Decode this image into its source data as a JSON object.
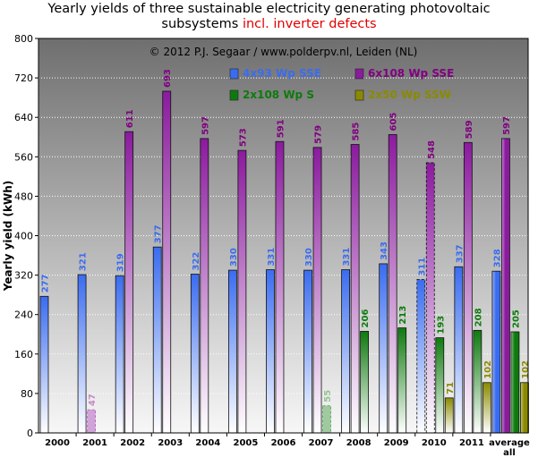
{
  "title_line1": "Yearly yields of three sustainable electricity generating photovoltaic",
  "title_line2_main": "subsystems",
  "title_line2_red": "incl. inverter defects",
  "copyright": "© 2012 P.J. Segaar / www.polderpv.nl, Leiden (NL)",
  "colors": {
    "blue": "#3a6cf0",
    "purple": "#8b1a9e",
    "green": "#0e7a0e",
    "olive": "#8a8a00",
    "plot_bg_top": "#6f6f6f",
    "plot_bg_bottom": "#f7f7f7"
  },
  "chart_data": {
    "type": "bar",
    "ylabel": "Yearly yield (kWh)",
    "ylim": [
      0,
      800
    ],
    "yticks": [
      0,
      80,
      160,
      240,
      320,
      400,
      480,
      560,
      640,
      720,
      800
    ],
    "grid": true,
    "legend_placement": "top",
    "categories": [
      "2000",
      "2001",
      "2002",
      "2003",
      "2004",
      "2005",
      "2006",
      "2007",
      "2008",
      "2009",
      "2010",
      "2011",
      "average all"
    ],
    "category_lines": [
      [
        "2000"
      ],
      [
        "2001"
      ],
      [
        "2002"
      ],
      [
        "2003"
      ],
      [
        "2004"
      ],
      [
        "2005"
      ],
      [
        "2006"
      ],
      [
        "2007"
      ],
      [
        "2008"
      ],
      [
        "2009"
      ],
      [
        "2010"
      ],
      [
        "2011"
      ],
      [
        "average",
        "all"
      ]
    ],
    "series": [
      {
        "name": "4x93 Wp SSE",
        "color": "#3a6cf0",
        "label_color": "#3a6cf0",
        "values": [
          277,
          321,
          319,
          377,
          322,
          330,
          331,
          330,
          331,
          343,
          311,
          337,
          328
        ]
      },
      {
        "name": "6x108 Wp SSE",
        "color": "#8b1a9e",
        "label_color": "#800080",
        "values": [
          null,
          47,
          611,
          693,
          597,
          573,
          591,
          579,
          585,
          605,
          548,
          589,
          597
        ]
      },
      {
        "name": "2x108 Wp S",
        "color": "#0e7a0e",
        "label_color": "#0e7a0e",
        "values": [
          null,
          null,
          null,
          null,
          null,
          null,
          null,
          55,
          206,
          213,
          193,
          208,
          205
        ]
      },
      {
        "name": "2x50 Wp SSW",
        "color": "#8a8a00",
        "label_color": "#8a8a00",
        "values": [
          null,
          null,
          null,
          null,
          null,
          null,
          null,
          null,
          null,
          null,
          71,
          102,
          102
        ]
      }
    ]
  }
}
